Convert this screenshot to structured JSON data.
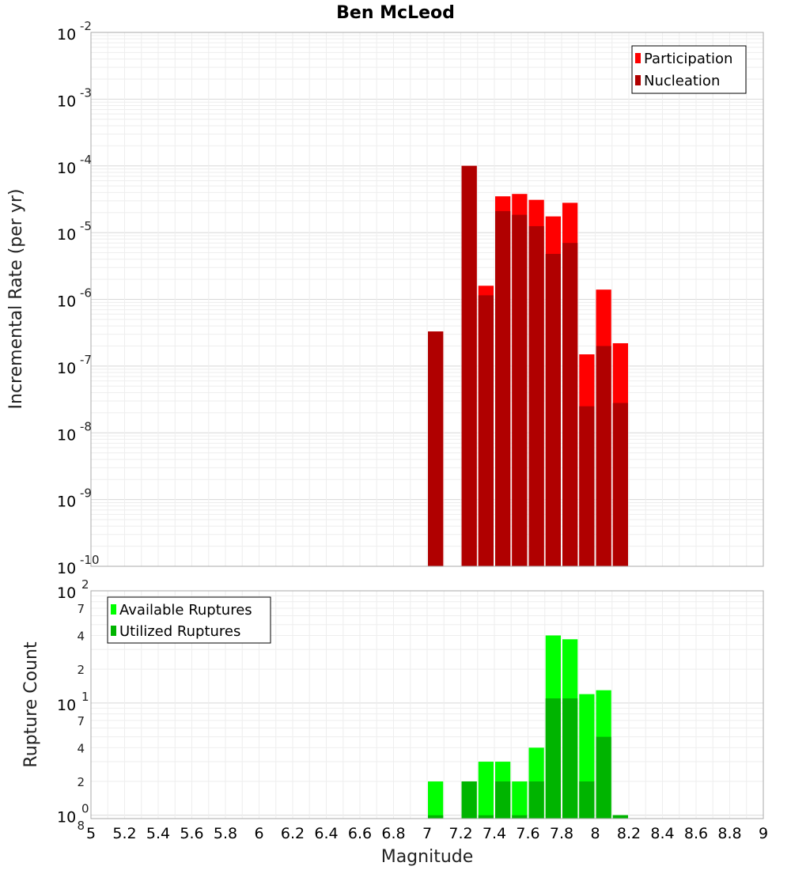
{
  "chart_data": [
    {
      "type": "bar",
      "title": "Ben McLeod",
      "xlabel": "",
      "ylabel": "Incremental Rate (per yr)",
      "y_scale": "log",
      "ylim": [
        1e-10,
        0.01
      ],
      "y_tick_exponents": [
        "-2",
        "-3",
        "-4",
        "-5",
        "-6",
        "-7",
        "-8",
        "-9",
        "-10"
      ],
      "y_tick_base": "10",
      "x": [
        7.05,
        7.25,
        7.35,
        7.45,
        7.55,
        7.65,
        7.75,
        7.85,
        7.95,
        8.05,
        8.15
      ],
      "series": [
        {
          "name": "Participation",
          "color": "#ff0000",
          "values": [
            3.3e-07,
            0.0001,
            1.6e-06,
            3.5e-05,
            3.8e-05,
            3.1e-05,
            1.75e-05,
            2.8e-05,
            1.5e-07,
            1.4e-06,
            2.2e-07
          ]
        },
        {
          "name": "Nucleation",
          "color": "#b00000",
          "values": [
            3.3e-07,
            0.0001,
            1.15e-06,
            2.1e-05,
            1.85e-05,
            1.25e-05,
            4.8e-06,
            7e-06,
            2.5e-08,
            2e-07,
            2.8e-08
          ]
        }
      ],
      "legend_position": "top-right",
      "grid": true
    },
    {
      "type": "bar",
      "xlabel": "Magnitude",
      "ylabel": "Rupture Count",
      "y_scale": "log",
      "x": [
        7.05,
        7.25,
        7.35,
        7.45,
        7.55,
        7.65,
        7.75,
        7.85,
        7.95,
        8.05,
        8.15
      ],
      "series": [
        {
          "name": "Available Ruptures",
          "color": "#00ff00",
          "values": [
            2,
            2,
            3,
            3,
            2,
            4,
            40,
            37,
            12,
            13,
            1
          ]
        },
        {
          "name": "Utilized Ruptures",
          "color": "#00b400",
          "values": [
            1,
            2,
            1,
            2,
            1,
            2,
            11,
            11,
            2,
            5,
            1
          ]
        }
      ],
      "y_ticks": [
        {
          "label": "10",
          "sup": "2"
        },
        {
          "label": "7"
        },
        {
          "label": "4"
        },
        {
          "label": "2"
        },
        {
          "label": "10",
          "sup": "1"
        },
        {
          "label": "7"
        },
        {
          "label": "4"
        },
        {
          "label": "2"
        },
        {
          "label": "10",
          "sup": "0"
        },
        {
          "label": "8"
        }
      ],
      "xlim": [
        5,
        9
      ],
      "x_ticks": [
        "5",
        "5.2",
        "5.4",
        "5.6",
        "5.8",
        "6",
        "6.2",
        "6.4",
        "6.6",
        "6.8",
        "7",
        "7.2",
        "7.4",
        "7.6",
        "7.8",
        "8",
        "8.2",
        "8.4",
        "8.6",
        "8.8",
        "9"
      ],
      "legend_position": "top-left",
      "grid": true
    }
  ]
}
